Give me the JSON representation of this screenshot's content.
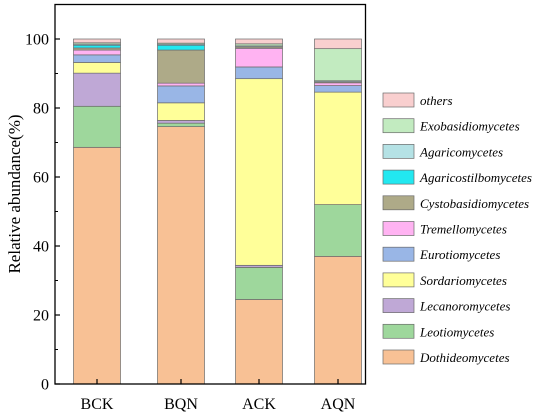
{
  "chart_data": {
    "type": "bar",
    "stacked": true,
    "title": "",
    "xlabel": "",
    "ylabel": "Relative abundance(%)",
    "ylim": [
      0,
      110
    ],
    "yticks": [
      0,
      20,
      40,
      60,
      80,
      100
    ],
    "categories": [
      "BCK",
      "BQN",
      "ACK",
      "AQN"
    ],
    "grid": false,
    "legend_position": "right",
    "series": [
      {
        "name": "Dothideomycetes",
        "color": "#F8C195",
        "values": [
          68.6,
          74.6,
          24.5,
          37.0
        ]
      },
      {
        "name": "Leotiomycetes",
        "color": "#9ED79C",
        "values": [
          11.9,
          1.0,
          9.3,
          15.0
        ]
      },
      {
        "name": "Lecanoromycetes",
        "color": "#BFA8D6",
        "values": [
          9.6,
          0.8,
          0.6,
          0.0
        ]
      },
      {
        "name": "Sordariomycetes",
        "color": "#FFFF99",
        "values": [
          3.1,
          5.1,
          54.1,
          32.6
        ]
      },
      {
        "name": "Eurotiomycetes",
        "color": "#99B6E6",
        "values": [
          2.2,
          4.9,
          3.4,
          1.9
        ]
      },
      {
        "name": "Tremellomycetes",
        "color": "#FFB3F2",
        "values": [
          1.4,
          0.8,
          5.4,
          0.8
        ]
      },
      {
        "name": "Cystobasidiomycetes",
        "color": "#AEAA88",
        "values": [
          0.6,
          9.6,
          0.4,
          0.3
        ]
      },
      {
        "name": "Agaricostilbomycetes",
        "color": "#22E8F0",
        "values": [
          0.8,
          1.4,
          0.0,
          0.0
        ]
      },
      {
        "name": "Agaricomycetes",
        "color": "#B5E2E5",
        "values": [
          0.3,
          0.3,
          0.3,
          0.3
        ]
      },
      {
        "name": "Exobasidiomycetes",
        "color": "#C2EBC0",
        "values": [
          0.4,
          0.3,
          0.6,
          9.3
        ]
      },
      {
        "name": "others",
        "color": "#F9CFCF",
        "values": [
          1.1,
          1.2,
          1.4,
          2.8
        ]
      }
    ]
  }
}
